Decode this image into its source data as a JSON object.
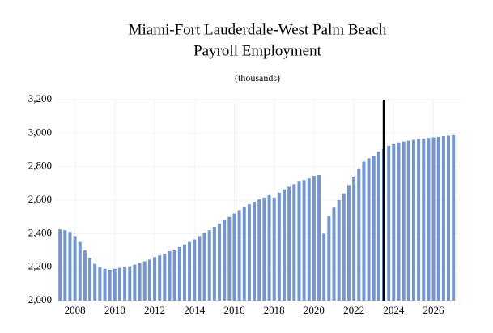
{
  "chart_data": {
    "type": "bar",
    "title": [
      "Miami-Fort Lauderdale-West Palm Beach",
      "Payroll Employment"
    ],
    "subtitle": "(thousands)",
    "color": "#7496cc",
    "x": [
      2007.25,
      2007.5,
      2007.75,
      2008,
      2008.25,
      2008.5,
      2008.75,
      2009,
      2009.25,
      2009.5,
      2009.75,
      2010,
      2010.25,
      2010.5,
      2010.75,
      2011,
      2011.25,
      2011.5,
      2011.75,
      2012,
      2012.25,
      2012.5,
      2012.75,
      2013,
      2013.25,
      2013.5,
      2013.75,
      2014,
      2014.25,
      2014.5,
      2014.75,
      2015,
      2015.25,
      2015.5,
      2015.75,
      2016,
      2016.25,
      2016.5,
      2016.75,
      2017,
      2017.25,
      2017.5,
      2017.75,
      2018,
      2018.25,
      2018.5,
      2018.75,
      2019,
      2019.25,
      2019.5,
      2019.75,
      2020,
      2020.25,
      2020.5,
      2020.75,
      2021,
      2021.25,
      2021.5,
      2021.75,
      2022,
      2022.25,
      2022.5,
      2022.75,
      2023,
      2023.25,
      2023.5,
      2023.75,
      2024,
      2024.25,
      2024.5,
      2024.75,
      2025,
      2025.25,
      2025.5,
      2025.75,
      2026,
      2026.25,
      2026.5,
      2026.75,
      2027
    ],
    "values": [
      2425,
      2420,
      2410,
      2385,
      2350,
      2300,
      2255,
      2220,
      2200,
      2190,
      2185,
      2190,
      2195,
      2200,
      2205,
      2215,
      2225,
      2235,
      2245,
      2260,
      2270,
      2280,
      2295,
      2305,
      2320,
      2335,
      2350,
      2365,
      2385,
      2405,
      2420,
      2440,
      2460,
      2480,
      2500,
      2520,
      2540,
      2560,
      2575,
      2590,
      2605,
      2615,
      2630,
      2615,
      2645,
      2665,
      2680,
      2695,
      2710,
      2720,
      2730,
      2745,
      2750,
      2400,
      2505,
      2555,
      2600,
      2640,
      2690,
      2740,
      2790,
      2830,
      2850,
      2865,
      2890,
      2905,
      2925,
      2935,
      2945,
      2950,
      2955,
      2960,
      2965,
      2968,
      2972,
      2975,
      2978,
      2982,
      2985,
      2988
    ],
    "xlim": [
      2007,
      2027.4
    ],
    "xticks": [
      2008,
      2010,
      2012,
      2014,
      2016,
      2018,
      2020,
      2022,
      2024,
      2026
    ],
    "ylim": [
      2000,
      3200
    ],
    "yticks": [
      {
        "value": 2000,
        "label": "2,000"
      },
      {
        "value": 2200,
        "label": "2,200"
      },
      {
        "value": 2400,
        "label": "2,400"
      },
      {
        "value": 2600,
        "label": "2,600"
      },
      {
        "value": 2800,
        "label": "2,800"
      },
      {
        "value": 3000,
        "label": "3,000"
      },
      {
        "value": 3200,
        "label": "3,200"
      }
    ],
    "vline": 2023.5,
    "grid": true
  }
}
